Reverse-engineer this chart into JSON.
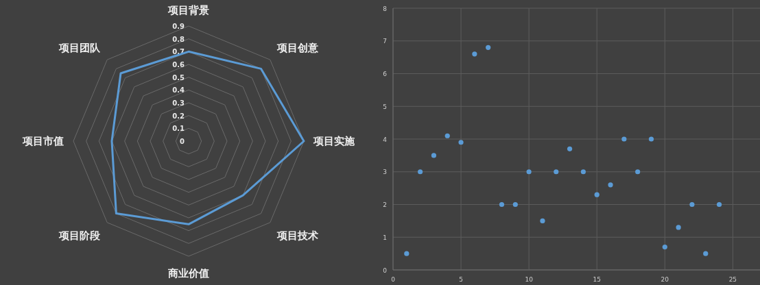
{
  "chart_data": [
    {
      "type": "radar",
      "categories": [
        "项目背景",
        "项目创意",
        "项目实施",
        "项目技术",
        "商业价值",
        "项目阶段",
        "项目市值",
        "项目团队"
      ],
      "series": [
        {
          "color": "#5b9bd5",
          "values": [
            0.7,
            0.8,
            0.9,
            0.6,
            0.65,
            0.8,
            0.6,
            0.75
          ]
        }
      ],
      "ylim": [
        0,
        0.9
      ],
      "yticks": [
        0,
        0.1,
        0.2,
        0.3,
        0.4,
        0.5,
        0.6,
        0.7,
        0.8,
        0.9
      ]
    },
    {
      "type": "scatter",
      "x": [
        1,
        2,
        3,
        4,
        5,
        6,
        7,
        8,
        9,
        10,
        11,
        12,
        13,
        14,
        15,
        16,
        17,
        18,
        19,
        20,
        21,
        22,
        23,
        24
      ],
      "series": [
        {
          "color": "#5b9bd5",
          "values": [
            0.5,
            3,
            3.5,
            4.1,
            3.9,
            6.6,
            6.8,
            2,
            2,
            3,
            1.5,
            3,
            3.7,
            3,
            2.3,
            2.6,
            4,
            3,
            4,
            0.7,
            1.3,
            2,
            0.5,
            2
          ]
        }
      ],
      "xlim": [
        0,
        27
      ],
      "ylim": [
        0,
        8
      ],
      "xticks": [
        0,
        5,
        10,
        15,
        20,
        25
      ],
      "yticks": [
        0,
        1,
        2,
        3,
        4,
        5,
        6,
        7,
        8
      ],
      "grid": true,
      "marker": "circle"
    }
  ]
}
